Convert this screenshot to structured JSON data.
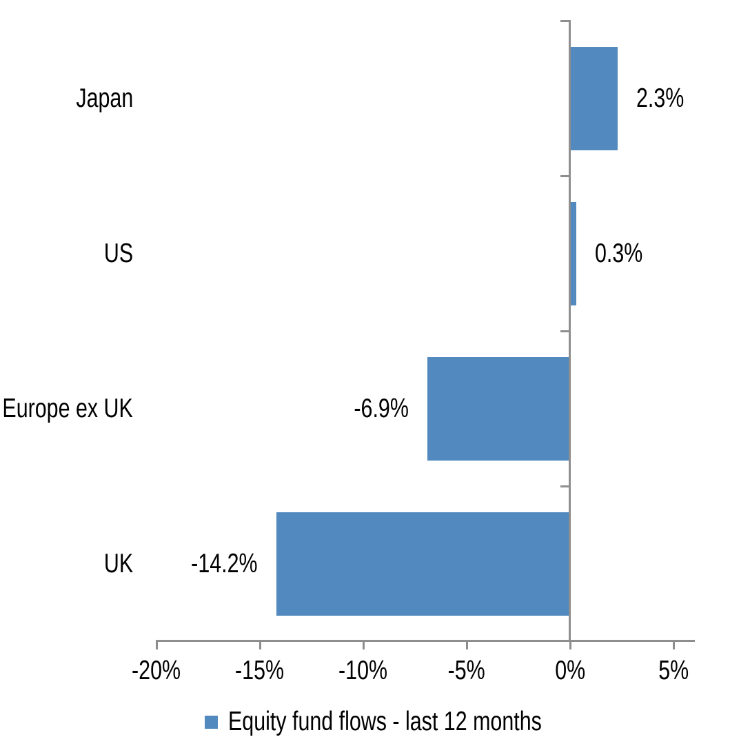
{
  "chart_data": {
    "type": "bar",
    "orientation": "horizontal",
    "title": "",
    "categories": [
      "Japan",
      "US",
      "Europe ex UK",
      "UK"
    ],
    "series": [
      {
        "name": "Equity fund flows - last 12 months",
        "values": [
          2.3,
          0.3,
          -6.9,
          -14.2
        ],
        "value_labels": [
          "2.3%",
          "0.3%",
          "-6.9%",
          "-14.2%"
        ]
      }
    ],
    "xlabel": "",
    "ylabel": "",
    "x_tick_labels": [
      "-20%",
      "-15%",
      "-10%",
      "-5%",
      "0%",
      "5%"
    ],
    "x_tick_values": [
      -20,
      -15,
      -10,
      -5,
      0,
      5
    ],
    "xlim": [
      -20,
      6
    ],
    "grid": false,
    "legend_position": "bottom",
    "bar_color": "#5289BE",
    "axis_color": "#8E8E8E",
    "text_color": "#000000"
  },
  "legend": {
    "label": "Equity fund flows - last 12 months",
    "swatch_color": "#5289BE"
  }
}
